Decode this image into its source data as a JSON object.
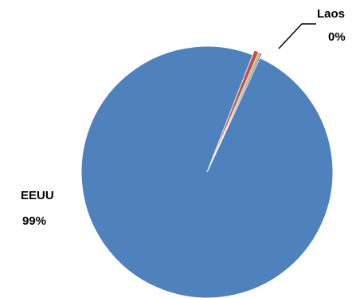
{
  "chart_data": {
    "type": "pie",
    "title": "",
    "slices": [
      {
        "label": "EEUU",
        "value": 99.0,
        "display": "99%",
        "color": "#4F81BD"
      },
      {
        "label": "",
        "value": 0.55,
        "display": "",
        "color": "#C0504D"
      },
      {
        "label": "",
        "value": 0.25,
        "display": "",
        "color": "#9BBB59"
      },
      {
        "label": "Laos",
        "value": 0.2,
        "display": "0%",
        "color": "#8064A2"
      }
    ],
    "legend": "none",
    "labels": {
      "main": {
        "name": "EEUU",
        "percent": "99%"
      },
      "callout": {
        "name": "Laos",
        "percent": "0%"
      }
    }
  }
}
